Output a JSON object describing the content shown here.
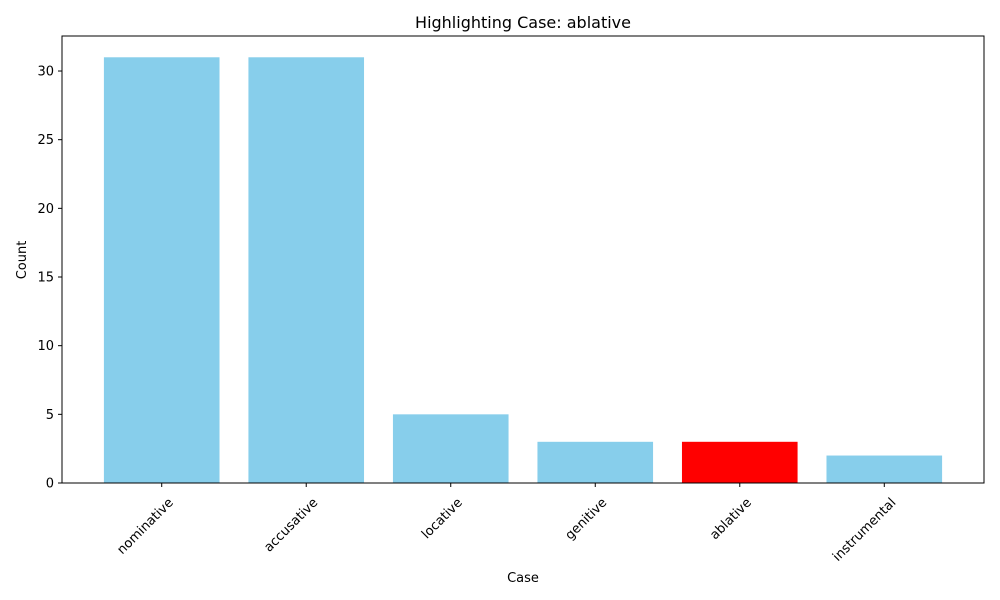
{
  "chart_data": {
    "type": "bar",
    "title": "Highlighting Case: ablative",
    "xlabel": "Case",
    "ylabel": "Count",
    "categories": [
      "nominative",
      "accusative",
      "locative",
      "genitive",
      "ablative",
      "instrumental"
    ],
    "values": [
      31,
      31,
      5,
      3,
      3,
      2
    ],
    "highlight": "ablative",
    "ylim": [
      0,
      32.55
    ],
    "yticks": [
      0,
      5,
      10,
      15,
      20,
      25,
      30
    ],
    "colors": {
      "default": "#87ceeb",
      "highlight": "#ff0000"
    },
    "grid": false,
    "legend": "none"
  }
}
